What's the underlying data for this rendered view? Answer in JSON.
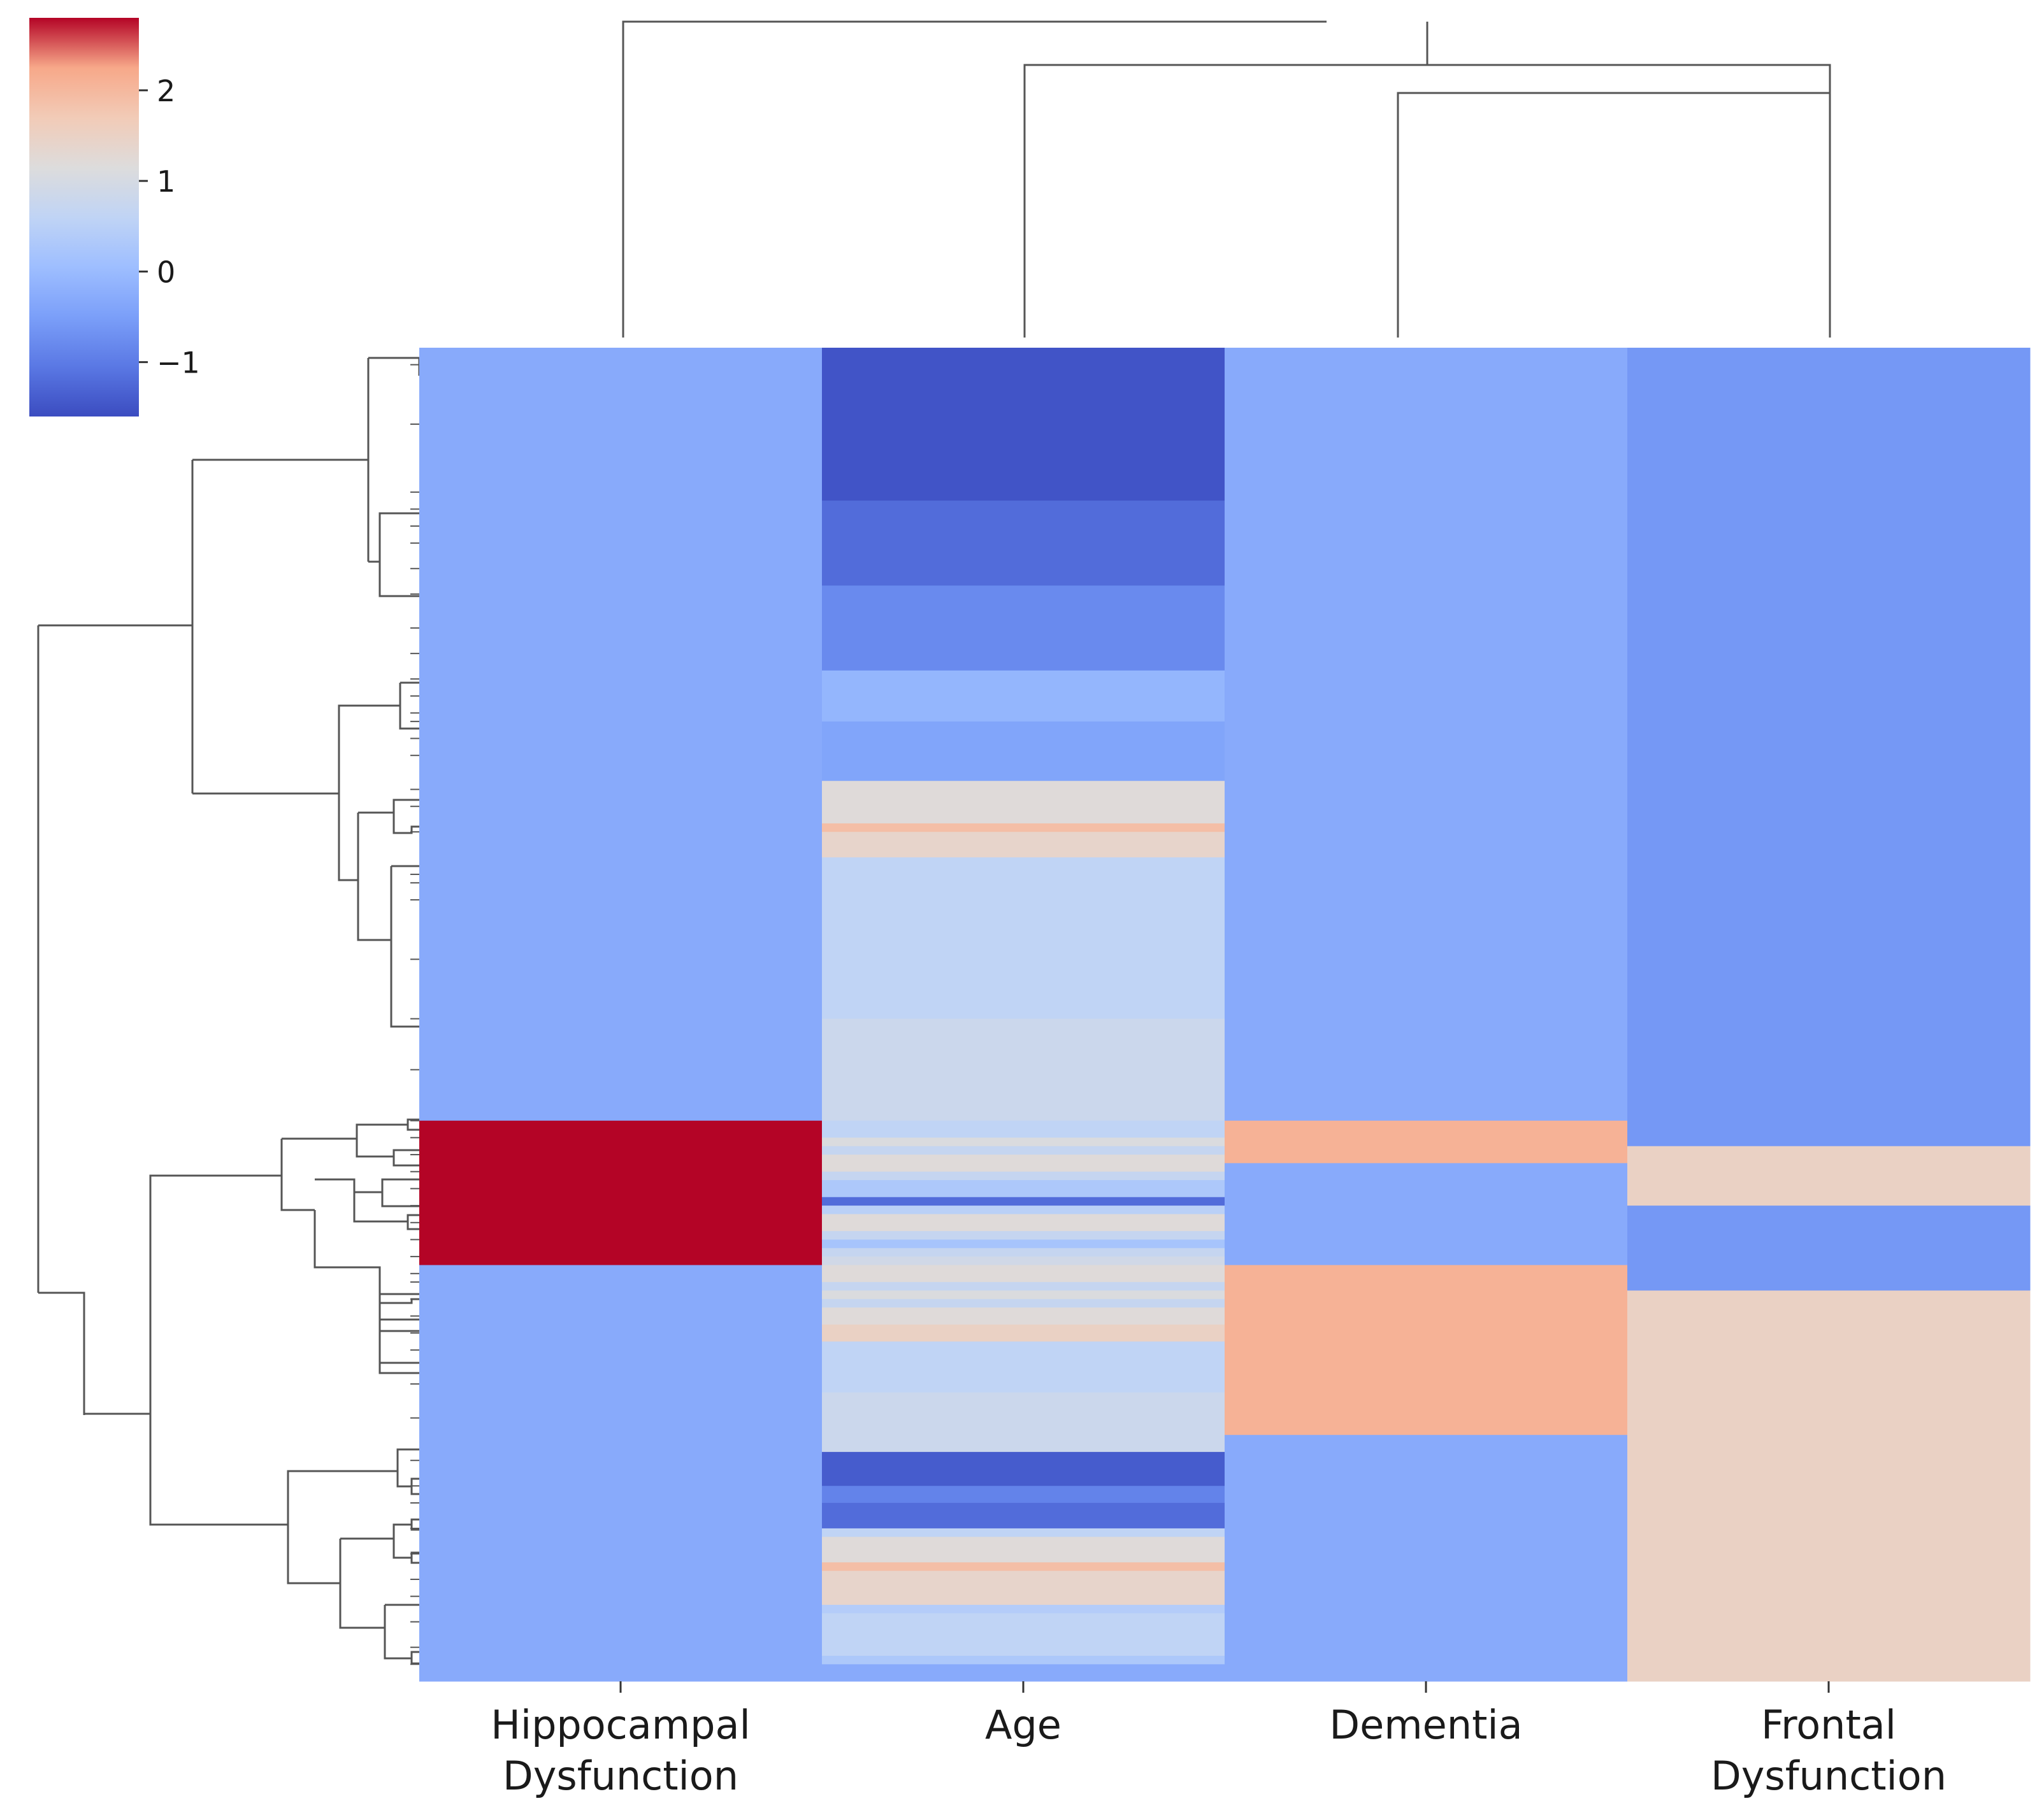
{
  "chart_data": {
    "type": "heatmap",
    "title": "",
    "columns": [
      "Hippocampal Dysfunction",
      "Age",
      "Dementia",
      "Frontal Dysfunction"
    ],
    "column_labels": [
      [
        "Hippocampal",
        "Dysfunction"
      ],
      [
        "Age"
      ],
      [
        "Dementia"
      ],
      [
        "Frontal",
        "Dysfunction"
      ]
    ],
    "row_count": 157,
    "value_scale": [
      -1.6,
      2.8
    ],
    "colorbar": {
      "colormap": "coolwarm",
      "ticks": [
        2,
        1,
        0,
        -1
      ],
      "tick_labels": [
        "2",
        "1",
        "0",
        "−1"
      ]
    },
    "columns_bands": [
      {
        "name": "Hippocampal Dysfunction",
        "bands": [
          [
            0,
            91,
            -0.3
          ],
          [
            91,
            108,
            2.8
          ],
          [
            108,
            157,
            -0.3
          ]
        ]
      },
      {
        "name": "Age",
        "bands": [
          [
            0,
            18,
            -1.5
          ],
          [
            18,
            28,
            -1.2
          ],
          [
            28,
            38,
            -0.8
          ],
          [
            38,
            44,
            -0.1
          ],
          [
            44,
            51,
            -0.4
          ],
          [
            51,
            56,
            1.2
          ],
          [
            56,
            57,
            1.9
          ],
          [
            57,
            60,
            1.4
          ],
          [
            60,
            79,
            0.6
          ],
          [
            79,
            91,
            0.8
          ],
          [
            91,
            93,
            0.6
          ],
          [
            93,
            94,
            1.1
          ],
          [
            94,
            95,
            0.7
          ],
          [
            95,
            97,
            1.2
          ],
          [
            97,
            98,
            0.7
          ],
          [
            98,
            100,
            0.3
          ],
          [
            100,
            101,
            -1.2
          ],
          [
            101,
            102,
            0.5
          ],
          [
            102,
            104,
            1.2
          ],
          [
            104,
            105,
            0.7
          ],
          [
            105,
            106,
            0.2
          ],
          [
            106,
            107,
            0.7
          ],
          [
            107,
            108,
            0.9
          ],
          [
            108,
            110,
            1.2
          ],
          [
            110,
            111,
            0.7
          ],
          [
            111,
            112,
            1.1
          ],
          [
            112,
            113,
            0.7
          ],
          [
            113,
            115,
            1.2
          ],
          [
            115,
            117,
            1.5
          ],
          [
            117,
            123,
            0.6
          ],
          [
            123,
            130,
            0.8
          ],
          [
            130,
            134,
            -1.4
          ],
          [
            134,
            136,
            -0.9
          ],
          [
            136,
            139,
            -1.2
          ],
          [
            139,
            140,
            0.6
          ],
          [
            140,
            143,
            1.2
          ],
          [
            143,
            144,
            1.9
          ],
          [
            144,
            148,
            1.4
          ],
          [
            148,
            149,
            0.4
          ],
          [
            149,
            154,
            0.6
          ],
          [
            154,
            155,
            0.3
          ],
          [
            155,
            157,
            -0.3
          ]
        ]
      },
      {
        "name": "Dementia",
        "bands": [
          [
            0,
            91,
            -0.3
          ],
          [
            91,
            96,
            2.1
          ],
          [
            96,
            108,
            -0.3
          ],
          [
            108,
            128,
            2.1
          ],
          [
            128,
            157,
            -0.3
          ]
        ]
      },
      {
        "name": "Frontal Dysfunction",
        "bands": [
          [
            0,
            94,
            -0.6
          ],
          [
            94,
            101,
            1.5
          ],
          [
            101,
            111,
            -0.6
          ],
          [
            111,
            157,
            1.5
          ]
        ]
      }
    ],
    "row_dendrogram_leaf_ticks": [
      2,
      9,
      17,
      19,
      21,
      23,
      26,
      29,
      33,
      36,
      39,
      41,
      43,
      44,
      46,
      48,
      52,
      54,
      57,
      62,
      63,
      65,
      72,
      79,
      85,
      91,
      93,
      95,
      97,
      99,
      101,
      103,
      105,
      107,
      109,
      110,
      112,
      114,
      116,
      118,
      122,
      126,
      131,
      134,
      136,
      139,
      142,
      145,
      147,
      150,
      153,
      155
    ]
  }
}
